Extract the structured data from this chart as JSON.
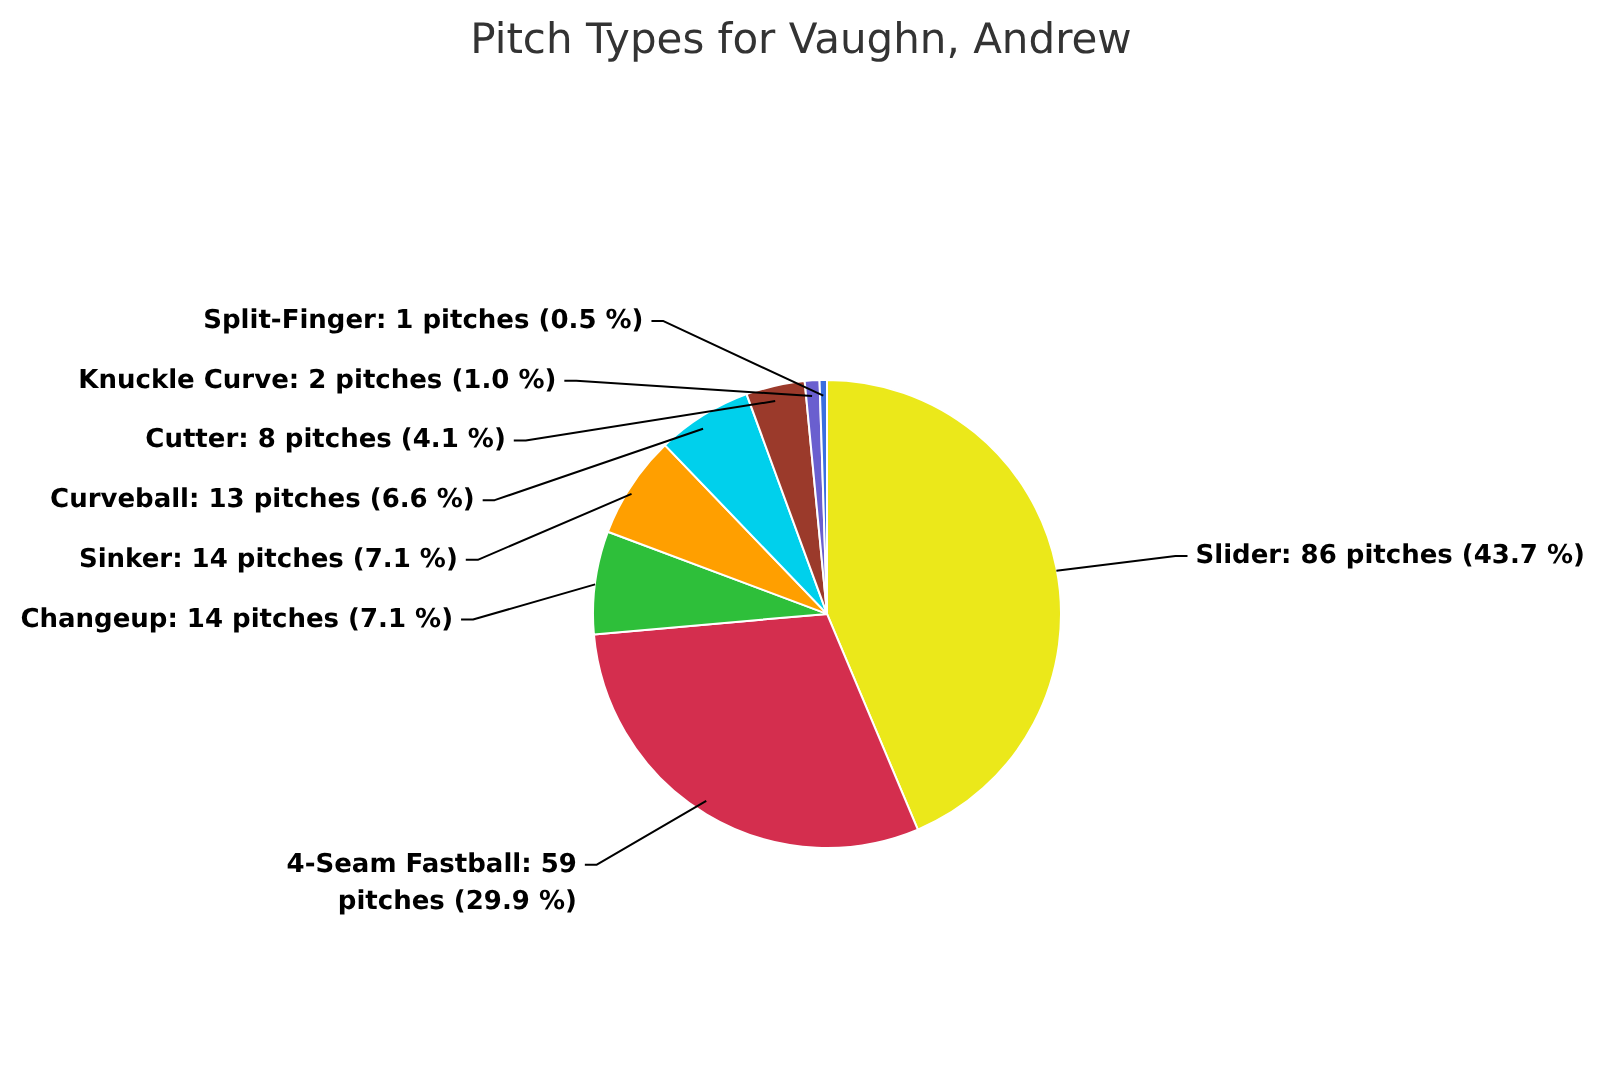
{
  "chart_data": {
    "type": "pie",
    "title": "Pitch Types for Vaughn, Andrew",
    "categories": [
      "Slider",
      "4-Seam Fastball",
      "Changeup",
      "Sinker",
      "Curveball",
      "Cutter",
      "Knuckle Curve",
      "Split-Finger"
    ],
    "values": [
      86,
      59,
      14,
      14,
      13,
      8,
      2,
      1
    ],
    "colors": [
      "#ebe81a",
      "#d42e4e",
      "#2ebf3a",
      "#ff9f00",
      "#00d0ec",
      "#9b3a2b",
      "#6a5fcf",
      "#3a6fe0"
    ],
    "value_labels": [
      "86 pitches (43.7 %)",
      "59 pitches (29.9 %)",
      "14 pitches (7.1 %)",
      "14 pitches (7.1 %)",
      "13 pitches (6.6 %)",
      "8 pitches (4.1 %)",
      "2 pitches (1.0 %)",
      "1 pitches (0.5 %)"
    ]
  }
}
